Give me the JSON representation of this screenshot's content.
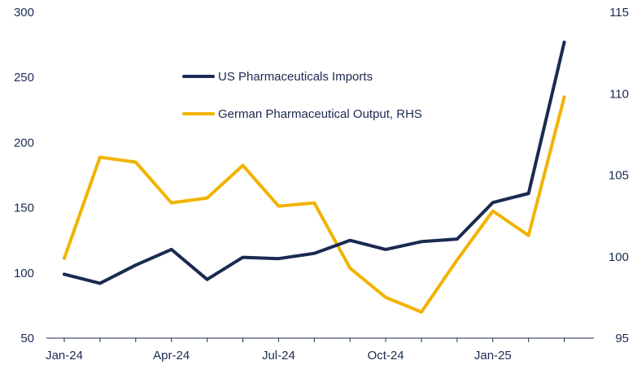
{
  "chart_data": {
    "type": "line",
    "title": "",
    "x": [
      "Jan-24",
      "Feb-24",
      "Mar-24",
      "Apr-24",
      "May-24",
      "Jun-24",
      "Jul-24",
      "Aug-24",
      "Sep-24",
      "Oct-24",
      "Nov-24",
      "Dec-24",
      "Jan-25",
      "Feb-25",
      "Mar-25"
    ],
    "x_tick_labels": [
      "Jan-24",
      "Apr-24",
      "Jul-24",
      "Oct-24",
      "Jan-25"
    ],
    "y_left": {
      "min": 50,
      "max": 300,
      "ticks": [
        50,
        100,
        150,
        200,
        250,
        300
      ]
    },
    "y_right": {
      "min": 95,
      "max": 115,
      "ticks": [
        95,
        100,
        105,
        110,
        115
      ]
    },
    "legend_position": "top-center",
    "grid": false,
    "series": [
      {
        "name": "US Pharmaceuticals Imports",
        "axis": "left",
        "color": "#1b2a52",
        "values": [
          99,
          92,
          106,
          118,
          95,
          112,
          111,
          115,
          125,
          118,
          124,
          126,
          154,
          161,
          277
        ]
      },
      {
        "name": "German Pharmaceutical Output, RHS",
        "axis": "right",
        "color": "#f2b300",
        "values": [
          99.9,
          106.1,
          105.8,
          103.3,
          103.6,
          105.6,
          103.1,
          103.3,
          99.3,
          97.5,
          96.6,
          99.8,
          102.8,
          101.3,
          109.8
        ]
      }
    ]
  }
}
